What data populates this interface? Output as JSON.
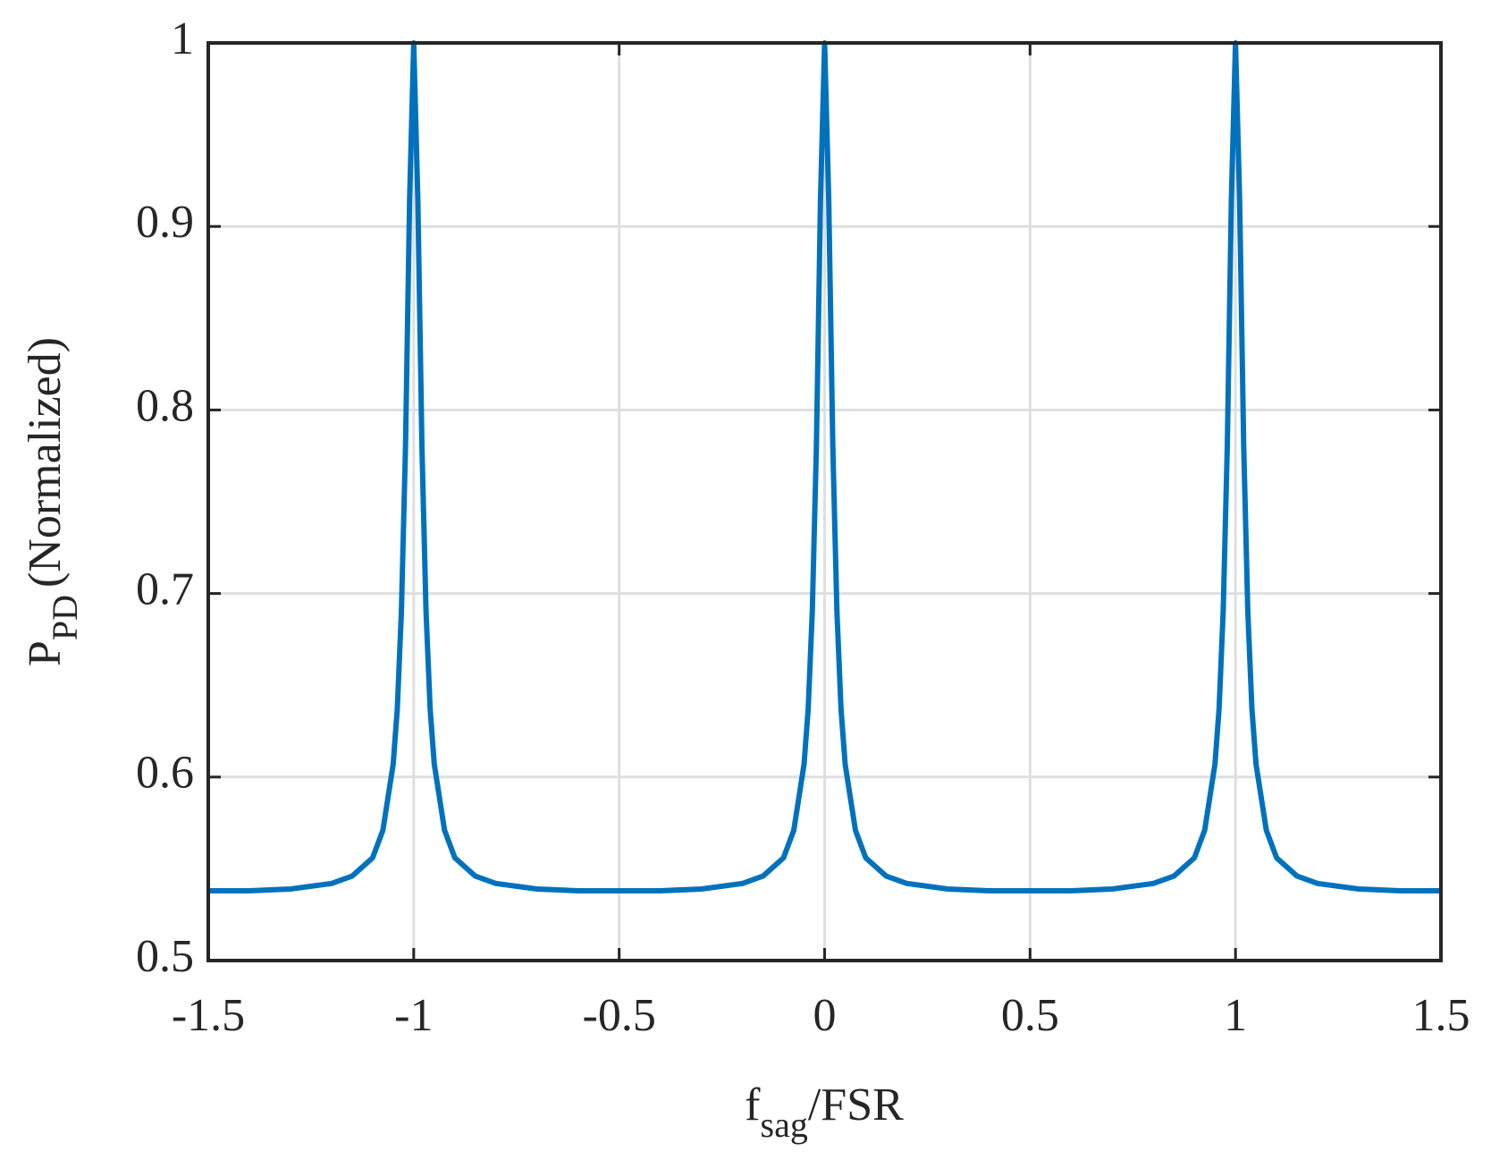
{
  "chart_data": {
    "type": "line",
    "xlabel": [
      "f",
      "sag",
      "/FSR"
    ],
    "ylabel": [
      "P",
      "PD",
      "(Normalized)"
    ],
    "x": [
      -1.5,
      -1.4,
      -1.3,
      -1.2,
      -1.15,
      -1.1,
      -1.075,
      -1.05,
      -1.04,
      -1.03,
      -1.02,
      -1.01,
      -1,
      -0.99,
      -0.98,
      -0.97,
      -0.96,
      -0.95,
      -0.925,
      -0.9,
      -0.85,
      -0.8,
      -0.7,
      -0.6,
      -0.5,
      -0.4,
      -0.3,
      -0.2,
      -0.15,
      -0.1,
      -0.075,
      -0.05,
      -0.04,
      -0.03,
      -0.02,
      -0.01,
      0,
      0.01,
      0.02,
      0.03,
      0.04,
      0.05,
      0.075,
      0.1,
      0.15,
      0.2,
      0.3,
      0.4,
      0.5,
      0.6,
      0.7,
      0.8,
      0.85,
      0.9,
      0.925,
      0.95,
      0.96,
      0.97,
      0.98,
      0.99,
      1,
      1.01,
      1.02,
      1.03,
      1.04,
      1.05,
      1.075,
      1.1,
      1.15,
      1.2,
      1.3,
      1.4,
      1.5
    ],
    "series": [
      {
        "color": "#0072bd",
        "values": [
          0.538,
          0.538,
          0.539,
          0.542,
          0.546,
          0.556,
          0.571,
          0.607,
          0.637,
          0.69,
          0.78,
          0.915,
          1,
          0.915,
          0.78,
          0.69,
          0.637,
          0.607,
          0.571,
          0.556,
          0.546,
          0.542,
          0.539,
          0.538,
          0.538,
          0.538,
          0.539,
          0.542,
          0.546,
          0.556,
          0.571,
          0.607,
          0.637,
          0.69,
          0.78,
          0.915,
          1,
          0.915,
          0.78,
          0.69,
          0.637,
          0.607,
          0.571,
          0.556,
          0.546,
          0.542,
          0.539,
          0.538,
          0.538,
          0.538,
          0.539,
          0.542,
          0.546,
          0.556,
          0.571,
          0.607,
          0.637,
          0.69,
          0.78,
          0.915,
          1,
          0.915,
          0.78,
          0.69,
          0.637,
          0.607,
          0.571,
          0.556,
          0.546,
          0.542,
          0.539,
          0.538,
          0.538
        ]
      }
    ],
    "xlim": [
      -1.5,
      1.5
    ],
    "xticks": [
      -1.5,
      -1,
      -0.5,
      0,
      0.5,
      1,
      1.5
    ],
    "ylim": [
      0.5,
      1
    ],
    "yticks": [
      0.5,
      0.6,
      0.7,
      0.8,
      0.9,
      1
    ],
    "grid": true
  }
}
